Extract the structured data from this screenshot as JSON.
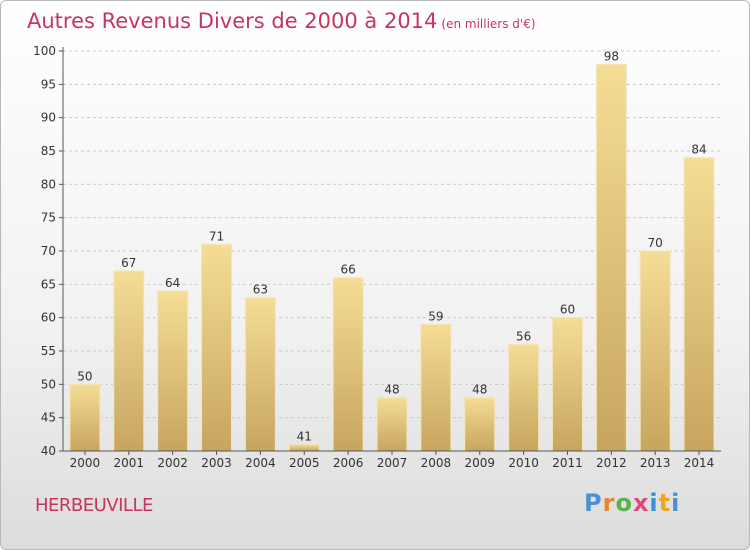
{
  "header": {
    "title": "Autres Revenus Divers de 2000 à 2014",
    "unit": "(en milliers d'€)"
  },
  "footer": {
    "commune": "HERBEUVILLE",
    "logo_text": "Proxiti"
  },
  "colors": {
    "title": "#c8345e",
    "bar_light": "#f5dd96",
    "bar_dark": "#c7a55f"
  },
  "chart_data": {
    "type": "bar",
    "title": "Autres Revenus Divers de 2000 à 2014",
    "subtitle": "(en milliers d'€)",
    "xlabel": "",
    "ylabel": "",
    "categories": [
      "2000",
      "2001",
      "2002",
      "2003",
      "2004",
      "2005",
      "2006",
      "2007",
      "2008",
      "2009",
      "2010",
      "2011",
      "2012",
      "2013",
      "2014"
    ],
    "values": [
      50,
      67,
      64,
      71,
      63,
      41,
      66,
      48,
      59,
      48,
      56,
      60,
      98,
      70,
      84
    ],
    "ylim": [
      40,
      100
    ],
    "yticks": [
      40,
      45,
      50,
      55,
      60,
      65,
      70,
      75,
      80,
      85,
      90,
      95,
      100
    ],
    "grid": "horizontal dashed",
    "legend": "none"
  }
}
